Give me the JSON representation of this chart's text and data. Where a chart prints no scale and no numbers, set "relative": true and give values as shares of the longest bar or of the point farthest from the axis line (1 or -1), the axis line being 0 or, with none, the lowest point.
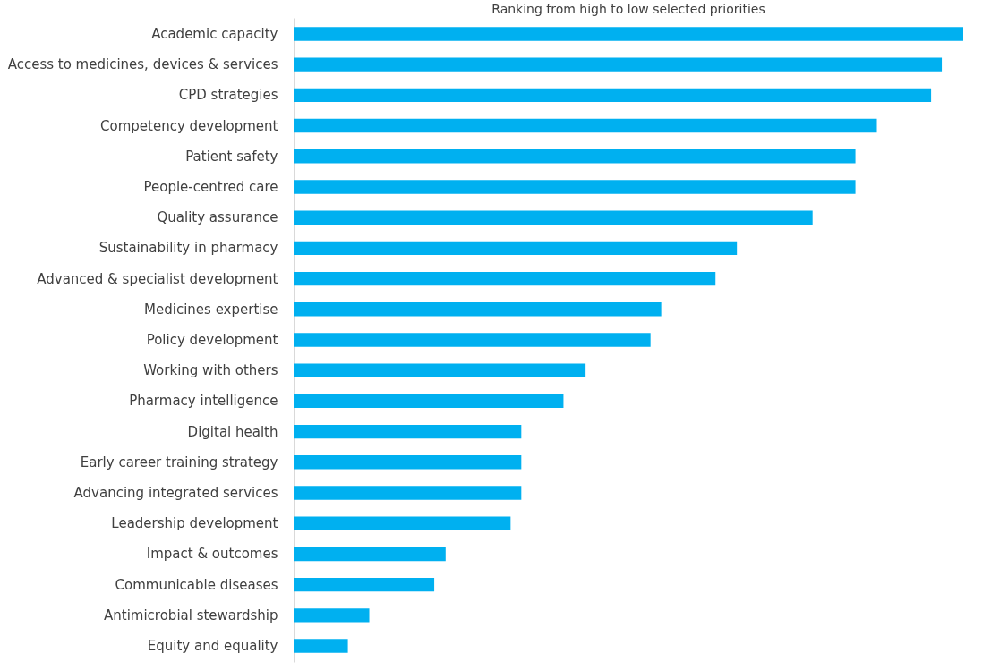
{
  "chart_data": {
    "type": "bar",
    "orientation": "horizontal",
    "relative": true,
    "title": "Ranking from high to low selected priorities",
    "categories": [
      "Academic capacity",
      "Access to medicines, devices & services",
      "CPD strategies",
      "Competency development",
      "Patient safety",
      "People-centred care",
      "Quality assurance",
      "Sustainability in pharmacy",
      "Advanced & specialist development",
      "Medicines expertise",
      "Policy development",
      "Working with others",
      "Pharmacy intelligence",
      "Digital health",
      "Early career training strategy",
      "Advancing integrated services",
      "Leadership development",
      "Impact & outcomes",
      "Communicable diseases",
      "Antimicrobial stewardship",
      "Equity and equality"
    ],
    "series": [
      {
        "color": "#00b0f0",
        "values": [
          1,
          0.968,
          0.952,
          0.871,
          0.839,
          0.839,
          0.775,
          0.662,
          0.63,
          0.549,
          0.533,
          0.436,
          0.403,
          0.34,
          0.34,
          0.34,
          0.324,
          0.227,
          0.21,
          0.113,
          0.081
        ]
      }
    ]
  }
}
